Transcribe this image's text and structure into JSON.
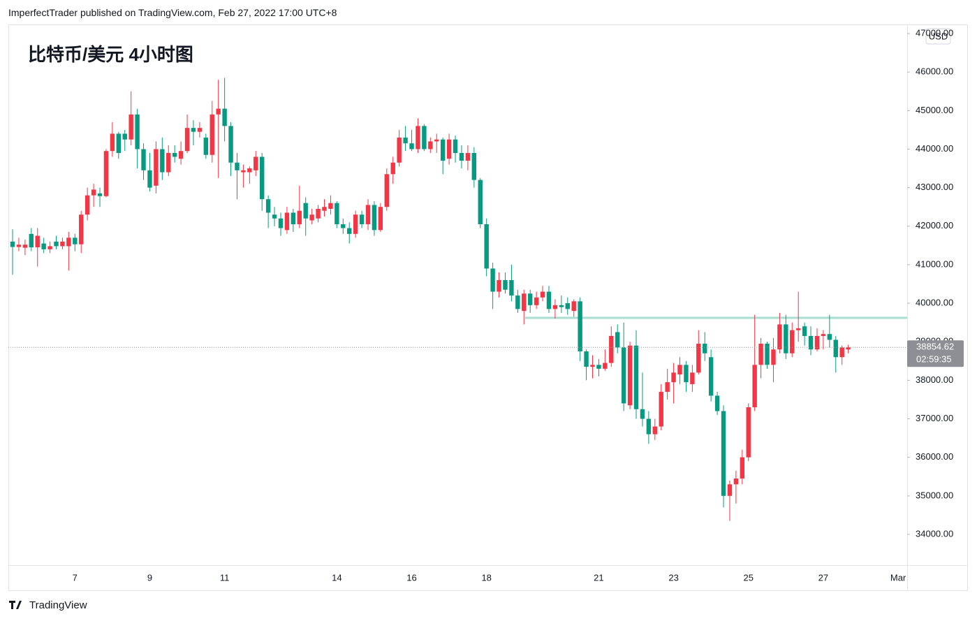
{
  "header": "ImperfectTrader published on TradingView.com, Feb 27, 2022 17:00 UTC+8",
  "footer": "TradingView",
  "chart_data": {
    "type": "candlestick",
    "title": "比特币/美元 4小时图",
    "currency": "USD",
    "countdown": "02:59:35",
    "up_color": "#f23645",
    "down_color": "#089981",
    "ylim": [
      33184,
      47236
    ],
    "yticks": [
      {
        "value": 34000,
        "label": "34000.00"
      },
      {
        "value": 35000,
        "label": "35000.00"
      },
      {
        "value": 36000,
        "label": "36000.00"
      },
      {
        "value": 37000,
        "label": "37000.00"
      },
      {
        "value": 38000,
        "label": "38000.00"
      },
      {
        "value": 39000,
        "label": "39000.00"
      },
      {
        "value": 40000,
        "label": "40000.00"
      },
      {
        "value": 41000,
        "label": "41000.00"
      },
      {
        "value": 42000,
        "label": "42000.00"
      },
      {
        "value": 43000,
        "label": "43000.00"
      },
      {
        "value": 44000,
        "label": "44000.00"
      },
      {
        "value": 45000,
        "label": "45000.00"
      },
      {
        "value": 46000,
        "label": "46000.00"
      },
      {
        "value": 47000,
        "label": "47000.00"
      }
    ],
    "level_line": {
      "value": 39620,
      "color": "#a8ddd2"
    },
    "categories": [
      null,
      null,
      null,
      null,
      null,
      null,
      null,
      null,
      null,
      null,
      "7",
      null,
      null,
      null,
      null,
      null,
      null,
      null,
      null,
      null,
      null,
      null,
      "9",
      null,
      null,
      null,
      null,
      null,
      null,
      null,
      null,
      null,
      null,
      null,
      "11",
      null,
      null,
      null,
      null,
      null,
      null,
      null,
      null,
      null,
      null,
      null,
      null,
      null,
      null,
      null,
      null,
      null,
      "14",
      null,
      null,
      null,
      null,
      null,
      null,
      null,
      null,
      null,
      null,
      null,
      "16",
      null,
      null,
      null,
      null,
      null,
      null,
      null,
      null,
      null,
      null,
      null,
      "18",
      null,
      null,
      null,
      null,
      null,
      null,
      null,
      null,
      null,
      null,
      null,
      null,
      null,
      null,
      null,
      null,
      null,
      "21",
      null,
      null,
      null,
      null,
      null,
      null,
      null,
      null,
      null,
      null,
      null,
      "23",
      null,
      null,
      null,
      null,
      null,
      null,
      null,
      null,
      null,
      null,
      null,
      "25",
      null,
      null,
      null,
      null,
      null,
      null,
      null,
      null,
      null,
      null,
      null,
      "27",
      null,
      null,
      null,
      null,
      null,
      null,
      null,
      null,
      null,
      null,
      null,
      "Mar"
    ],
    "candles": [
      [
        41600,
        41920,
        40740,
        41460
      ],
      [
        41460,
        41700,
        41350,
        41520
      ],
      [
        41440,
        41650,
        41250,
        41520
      ],
      [
        41800,
        41950,
        41350,
        41450
      ],
      [
        41450,
        41950,
        40950,
        41750
      ],
      [
        41550,
        41700,
        41300,
        41400
      ],
      [
        41400,
        41600,
        41300,
        41480
      ],
      [
        41600,
        41750,
        41400,
        41480
      ],
      [
        41480,
        41700,
        41400,
        41600
      ],
      [
        41480,
        41850,
        40850,
        41700
      ],
      [
        41700,
        41800,
        41350,
        41530
      ],
      [
        41530,
        42400,
        41300,
        42300
      ],
      [
        42300,
        43000,
        42150,
        42800
      ],
      [
        42800,
        43100,
        42500,
        42950
      ],
      [
        42850,
        43000,
        42500,
        42780
      ],
      [
        42780,
        44000,
        42750,
        43950
      ],
      [
        43950,
        44700,
        43800,
        44400
      ],
      [
        44400,
        44450,
        43750,
        43900
      ],
      [
        44400,
        44500,
        43950,
        44250
      ],
      [
        44250,
        45500,
        44100,
        44900
      ],
      [
        44900,
        45050,
        43500,
        44000
      ],
      [
        44000,
        44150,
        43200,
        43450
      ],
      [
        43450,
        43900,
        42900,
        43000
      ],
      [
        43050,
        44200,
        42850,
        44000
      ],
      [
        44000,
        44300,
        43200,
        43400
      ],
      [
        43400,
        44100,
        43300,
        43900
      ],
      [
        43900,
        44100,
        43650,
        43800
      ],
      [
        43750,
        44200,
        43600,
        43950
      ],
      [
        43950,
        44900,
        43900,
        44550
      ],
      [
        44550,
        44750,
        44100,
        44450
      ],
      [
        44450,
        44700,
        44300,
        44550
      ],
      [
        44300,
        44400,
        43750,
        43850
      ],
      [
        43850,
        45250,
        43650,
        44900
      ],
      [
        44900,
        45800,
        43250,
        45050
      ],
      [
        45050,
        45850,
        44200,
        44600
      ],
      [
        44600,
        44700,
        43300,
        43650
      ],
      [
        43650,
        43900,
        42700,
        43450
      ],
      [
        43400,
        43600,
        43000,
        43450
      ],
      [
        43400,
        43550,
        43100,
        43500
      ],
      [
        43450,
        43950,
        43300,
        43800
      ],
      [
        43800,
        43900,
        42400,
        42700
      ],
      [
        42700,
        42800,
        41950,
        42350
      ],
      [
        42300,
        42500,
        42000,
        42200
      ],
      [
        42200,
        42350,
        41750,
        41950
      ],
      [
        41900,
        42500,
        41800,
        42350
      ],
      [
        42350,
        42450,
        41850,
        42050
      ],
      [
        42050,
        43050,
        41950,
        42400
      ],
      [
        42600,
        42750,
        41750,
        42200
      ],
      [
        42150,
        42450,
        42050,
        42300
      ],
      [
        42200,
        42550,
        42100,
        42450
      ],
      [
        42400,
        42700,
        42250,
        42500
      ],
      [
        42450,
        42800,
        42300,
        42600
      ],
      [
        42600,
        42650,
        41950,
        42050
      ],
      [
        42050,
        42200,
        41800,
        41950
      ],
      [
        41950,
        42100,
        41550,
        41800
      ],
      [
        41800,
        42400,
        41700,
        42300
      ],
      [
        42300,
        42400,
        41950,
        42050
      ],
      [
        42050,
        42700,
        41900,
        42550
      ],
      [
        42550,
        42650,
        41750,
        41900
      ],
      [
        41900,
        42600,
        41850,
        42500
      ],
      [
        42500,
        43500,
        42400,
        43350
      ],
      [
        43350,
        43800,
        43100,
        43650
      ],
      [
        43650,
        44500,
        43550,
        44300
      ],
      [
        44300,
        44600,
        43950,
        44150
      ],
      [
        44150,
        44500,
        43950,
        44000
      ],
      [
        44000,
        44800,
        43900,
        44600
      ],
      [
        44600,
        44650,
        43950,
        44000
      ],
      [
        44000,
        44300,
        43900,
        44200
      ],
      [
        44200,
        44400,
        43900,
        44250
      ],
      [
        44250,
        44300,
        43350,
        43700
      ],
      [
        43750,
        44400,
        43600,
        44250
      ],
      [
        44250,
        44350,
        43650,
        43900
      ],
      [
        43900,
        44100,
        43500,
        43700
      ],
      [
        43700,
        44100,
        43450,
        43900
      ],
      [
        43900,
        44050,
        43000,
        43200
      ],
      [
        43200,
        43250,
        41950,
        42050
      ],
      [
        42050,
        42200,
        40700,
        40900
      ],
      [
        40900,
        41050,
        39850,
        40300
      ],
      [
        40300,
        40800,
        40150,
        40600
      ],
      [
        40600,
        40800,
        40250,
        40350
      ],
      [
        40600,
        41000,
        40050,
        40200
      ],
      [
        40200,
        40350,
        39750,
        39850
      ],
      [
        39800,
        40350,
        39450,
        40250
      ],
      [
        40250,
        40350,
        39750,
        39950
      ],
      [
        39950,
        40300,
        39850,
        40150
      ],
      [
        40150,
        40450,
        40050,
        40300
      ],
      [
        40300,
        40450,
        39750,
        39850
      ],
      [
        39850,
        40100,
        39600,
        39950
      ],
      [
        39950,
        40200,
        39750,
        39900
      ],
      [
        40000,
        40150,
        39700,
        39850
      ],
      [
        39800,
        40100,
        39650,
        40050
      ],
      [
        40050,
        40150,
        38500,
        38750
      ],
      [
        38750,
        38800,
        38000,
        38350
      ],
      [
        38350,
        38650,
        38050,
        38400
      ],
      [
        38400,
        38550,
        38100,
        38300
      ],
      [
        38300,
        38800,
        38250,
        38450
      ],
      [
        38450,
        39400,
        38350,
        39150
      ],
      [
        39250,
        39450,
        38700,
        38850
      ],
      [
        38850,
        39500,
        37200,
        37400
      ],
      [
        37350,
        39000,
        37250,
        38900
      ],
      [
        38900,
        39300,
        37000,
        37250
      ],
      [
        37250,
        38200,
        36800,
        37000
      ],
      [
        37000,
        37200,
        36350,
        36600
      ],
      [
        36600,
        37000,
        36450,
        36800
      ],
      [
        36800,
        37900,
        36700,
        37700
      ],
      [
        37700,
        38300,
        37500,
        37950
      ],
      [
        37950,
        38450,
        37400,
        38200
      ],
      [
        38150,
        38600,
        37900,
        38400
      ],
      [
        38400,
        38500,
        37700,
        37950
      ],
      [
        37900,
        38400,
        37700,
        38200
      ],
      [
        38200,
        39300,
        38150,
        38950
      ],
      [
        38950,
        39250,
        38500,
        38700
      ],
      [
        38600,
        38800,
        37450,
        37600
      ],
      [
        37600,
        37700,
        37100,
        37200
      ],
      [
        37200,
        37350,
        34700,
        35000
      ],
      [
        35000,
        35400,
        34350,
        35300
      ],
      [
        35300,
        35650,
        34800,
        35450
      ],
      [
        35450,
        36200,
        35300,
        36000
      ],
      [
        36000,
        37400,
        35900,
        37300
      ],
      [
        37300,
        39700,
        37200,
        38400
      ],
      [
        38400,
        39100,
        38050,
        38950
      ],
      [
        38950,
        39000,
        38300,
        38400
      ],
      [
        38400,
        39100,
        37950,
        38800
      ],
      [
        38800,
        39750,
        38700,
        39450
      ],
      [
        39450,
        39700,
        38550,
        38700
      ],
      [
        38700,
        39500,
        38600,
        39300
      ],
      [
        39300,
        40300,
        39000,
        39350
      ],
      [
        39400,
        39500,
        38900,
        39150
      ],
      [
        39150,
        39400,
        38650,
        38800
      ],
      [
        38800,
        39350,
        38750,
        39150
      ],
      [
        39150,
        39300,
        38800,
        39200
      ],
      [
        39200,
        39700,
        38850,
        39050
      ],
      [
        39050,
        39150,
        38200,
        38600
      ],
      [
        38600,
        38900,
        38400,
        38850
      ],
      [
        38800,
        38920,
        38700,
        38854.62
      ],
      null,
      null,
      null,
      null,
      null,
      null,
      null,
      null
    ]
  }
}
